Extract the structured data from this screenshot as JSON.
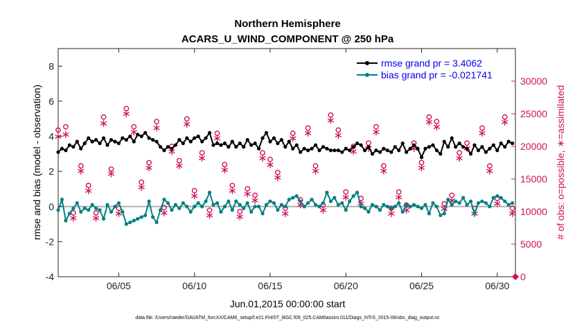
{
  "chart_data": {
    "type": "line",
    "title": "Northern Hemisphere",
    "subtitle": "ACARS_U_WIND_COMPONENT @ 250 hPa",
    "xlabel": "Jun.01,2015 00:00:00 start",
    "ylabel": "rmse and bias (model - observation)",
    "ylabel_right": "# of obs: o=possible, ∗=assimilated",
    "footnote": "data file: /Users/raeder/DAI/ATM_forcXX/CAM6_setup/f.e21.FHIST_BGC.f09_025.CAM6assim.011/Diags_NTrS_2015-06/obs_diag_output.nc",
    "xlim": [
      1,
      31.2
    ],
    "ylim": [
      -4,
      9
    ],
    "ylim_right": [
      0,
      35000
    ],
    "xticks": [
      5,
      10,
      15,
      20,
      25,
      30
    ],
    "xtick_labels": [
      "06/05",
      "06/10",
      "06/15",
      "06/20",
      "06/25",
      "06/30"
    ],
    "yticks": [
      -4,
      -2,
      0,
      2,
      4,
      6,
      8
    ],
    "ytick_labels": [
      "-4",
      "-2",
      "0",
      "2",
      "4",
      "6",
      "8"
    ],
    "yticks_right": [
      0,
      5000,
      10000,
      15000,
      20000,
      25000,
      30000
    ],
    "ytick_right_labels": [
      "0",
      "5000",
      "10000",
      "15000",
      "20000",
      "25000",
      "30000"
    ],
    "grid": false,
    "legend_position": "top-right",
    "legend": [
      {
        "label": "rmse grand pr = 3.4062",
        "color": "#000000"
      },
      {
        "label": "bias grand pr = -0.021741",
        "color": "#008080"
      }
    ],
    "colors": {
      "rmse": "#000000",
      "bias": "#008080",
      "obs": "#d0105a",
      "zero_line": "#b0b0b0"
    },
    "obs_axis_marker": {
      "x": 31.2,
      "y": 0
    },
    "series": [
      {
        "name": "rmse grand pr = 3.4062",
        "axis": "left",
        "x": [
          1.0,
          1.25,
          1.5,
          1.75,
          2.0,
          2.25,
          2.5,
          2.75,
          3.0,
          3.25,
          3.5,
          3.75,
          4.0,
          4.25,
          4.5,
          4.75,
          5.0,
          5.25,
          5.5,
          5.75,
          6.0,
          6.25,
          6.5,
          6.75,
          7.0,
          7.25,
          7.5,
          7.75,
          8.0,
          8.25,
          8.5,
          8.75,
          9.0,
          9.25,
          9.5,
          9.75,
          10.0,
          10.25,
          10.5,
          10.75,
          11.0,
          11.25,
          11.5,
          11.75,
          12.0,
          12.25,
          12.5,
          12.75,
          13.0,
          13.25,
          13.5,
          13.75,
          14.0,
          14.25,
          14.5,
          14.75,
          15.0,
          15.25,
          15.5,
          15.75,
          16.0,
          16.25,
          16.5,
          16.75,
          17.0,
          17.25,
          17.5,
          17.75,
          18.0,
          18.25,
          18.5,
          18.75,
          19.0,
          19.25,
          19.5,
          19.75,
          20.0,
          20.25,
          20.5,
          20.75,
          21.0,
          21.25,
          21.5,
          21.75,
          22.0,
          22.25,
          22.5,
          22.75,
          23.0,
          23.25,
          23.5,
          23.75,
          24.0,
          24.25,
          24.5,
          24.75,
          25.0,
          25.25,
          25.5,
          25.75,
          26.0,
          26.25,
          26.5,
          26.75,
          27.0,
          27.25,
          27.5,
          27.75,
          28.0,
          28.25,
          28.5,
          28.75,
          29.0,
          29.25,
          29.5,
          29.75,
          30.0,
          30.25,
          30.5,
          30.75,
          31.0
        ],
        "values": [
          3.1,
          3.3,
          3.2,
          3.5,
          3.4,
          3.7,
          3.3,
          3.6,
          3.9,
          3.7,
          3.8,
          3.6,
          3.9,
          3.5,
          3.8,
          3.7,
          3.6,
          3.9,
          3.8,
          4.0,
          3.7,
          4.1,
          4.0,
          4.2,
          3.9,
          3.8,
          3.7,
          3.4,
          3.2,
          3.4,
          3.3,
          3.5,
          3.8,
          3.6,
          3.9,
          3.7,
          3.9,
          4.0,
          3.7,
          3.9,
          4.2,
          3.5,
          3.6,
          3.5,
          3.6,
          3.4,
          3.7,
          3.4,
          3.6,
          3.4,
          3.8,
          3.5,
          3.6,
          3.3,
          3.9,
          4.2,
          3.7,
          3.9,
          3.6,
          3.8,
          3.4,
          3.7,
          3.3,
          3.5,
          3.1,
          3.3,
          3.2,
          3.3,
          3.5,
          3.2,
          3.4,
          3.3,
          3.2,
          3.2,
          3.2,
          3.1,
          3.3,
          3.2,
          3.4,
          3.6,
          3.5,
          3.2,
          3.4,
          3.0,
          3.2,
          3.1,
          3.3,
          3.2,
          3.1,
          3.4,
          3.2,
          3.6,
          3.1,
          3.3,
          3.5,
          3.3,
          2.8,
          3.3,
          3.4,
          3.5,
          3.2,
          3.0,
          3.7,
          3.4,
          3.9,
          3.4,
          3.6,
          3.4,
          3.3,
          3.0,
          3.5,
          3.2,
          3.4,
          3.1,
          3.3,
          3.5,
          3.2,
          3.6,
          3.4,
          3.7,
          3.6
        ]
      },
      {
        "name": "bias grand pr = -0.021741",
        "axis": "left",
        "x": [
          1.0,
          1.25,
          1.5,
          1.75,
          2.0,
          2.25,
          2.5,
          2.75,
          3.0,
          3.25,
          3.5,
          3.75,
          4.0,
          4.25,
          4.5,
          4.75,
          5.0,
          5.25,
          5.5,
          5.75,
          6.0,
          6.25,
          6.5,
          6.75,
          7.0,
          7.25,
          7.5,
          7.75,
          8.0,
          8.25,
          8.5,
          8.75,
          9.0,
          9.25,
          9.5,
          9.75,
          10.0,
          10.25,
          10.5,
          10.75,
          11.0,
          11.25,
          11.5,
          11.75,
          12.0,
          12.25,
          12.5,
          12.75,
          13.0,
          13.25,
          13.5,
          13.75,
          14.0,
          14.25,
          14.5,
          14.75,
          15.0,
          15.25,
          15.5,
          15.75,
          16.0,
          16.25,
          16.5,
          16.75,
          17.0,
          17.25,
          17.5,
          17.75,
          18.0,
          18.25,
          18.5,
          18.75,
          19.0,
          19.25,
          19.5,
          19.75,
          20.0,
          20.25,
          20.5,
          20.75,
          21.0,
          21.25,
          21.5,
          21.75,
          22.0,
          22.25,
          22.5,
          22.75,
          23.0,
          23.25,
          23.5,
          23.75,
          24.0,
          24.25,
          24.5,
          24.75,
          25.0,
          25.25,
          25.5,
          25.75,
          26.0,
          26.25,
          26.5,
          26.75,
          27.0,
          27.25,
          27.5,
          27.75,
          28.0,
          28.25,
          28.5,
          28.75,
          29.0,
          29.25,
          29.5,
          29.75,
          30.0,
          30.25,
          30.5,
          30.75,
          31.0
        ],
        "values": [
          -0.2,
          0.4,
          -0.8,
          -0.4,
          -0.1,
          0.2,
          -0.3,
          -0.1,
          -0.2,
          0.1,
          -0.1,
          -0.2,
          -0.7,
          0.1,
          -0.3,
          0.0,
          0.2,
          -0.3,
          -1.0,
          -0.9,
          -0.8,
          -0.7,
          -0.6,
          -0.5,
          0.3,
          -0.6,
          -0.9,
          -0.2,
          0.4,
          0.2,
          -0.2,
          0.1,
          -0.1,
          0.2,
          0.0,
          -0.3,
          0.0,
          0.2,
          0.0,
          0.3,
          0.8,
          0.1,
          0.2,
          -0.3,
          0.0,
          0.3,
          -0.2,
          0.3,
          0.1,
          -0.1,
          0.2,
          -0.3,
          0.0,
          0.0,
          -0.4,
          0.1,
          0.3,
          0.2,
          -0.2,
          0.1,
          0.0,
          0.4,
          0.5,
          0.6,
          0.3,
          0.0,
          0.2,
          0.4,
          0.1,
          0.0,
          0.2,
          0.8,
          0.3,
          0.5,
          0.1,
          0.2,
          -0.2,
          0.3,
          0.6,
          0.8,
          0.0,
          -0.1,
          -0.3,
          0.1,
          0.0,
          -0.2,
          0.1,
          0.0,
          -0.1,
          0.0,
          0.2,
          -0.3,
          0.1,
          0.0,
          0.1,
          0.0,
          -0.1,
          0.1,
          -0.4,
          0.2,
          0.0,
          -0.5,
          -0.4,
          0.4,
          0.1,
          0.3,
          0.2,
          0.5,
          0.1,
          0.3,
          -0.4,
          0.2,
          0.3,
          0.2,
          0.0,
          0.5,
          0.6,
          0.5,
          0.3,
          0.1,
          0.2
        ]
      },
      {
        "name": "possible",
        "axis": "right",
        "marker": "o",
        "x": [
          1.0,
          1.5,
          2.0,
          2.5,
          3.0,
          3.5,
          4.0,
          4.5,
          5.0,
          5.5,
          6.0,
          6.5,
          7.0,
          7.5,
          8.0,
          8.5,
          9.0,
          9.5,
          10.0,
          10.5,
          11.0,
          11.5,
          12.0,
          12.5,
          13.0,
          13.5,
          14.0,
          14.5,
          15.0,
          15.5,
          16.0,
          16.5,
          17.0,
          17.5,
          18.0,
          18.5,
          19.0,
          19.5,
          20.0,
          20.5,
          21.0,
          21.5,
          22.0,
          22.5,
          23.0,
          23.5,
          24.0,
          24.5,
          25.0,
          25.5,
          26.0,
          26.5,
          27.0,
          27.5,
          28.0,
          28.5,
          29.0,
          29.5,
          30.0,
          30.5,
          31.0
        ],
        "values": [
          22500,
          23000,
          9800,
          17000,
          14000,
          9800,
          24500,
          16500,
          10500,
          25800,
          23000,
          14500,
          17500,
          23800,
          10600,
          20000,
          17800,
          24200,
          13200,
          19000,
          10200,
          22000,
          17200,
          14000,
          10000,
          13500,
          12500,
          19000,
          18000,
          16000,
          10500,
          22000,
          11800,
          22800,
          17000,
          11000,
          24800,
          22500,
          13000,
          20000,
          12000,
          20500,
          23000,
          17000,
          10500,
          13000,
          11000,
          20500,
          17500,
          24500,
          23800,
          11200,
          12500,
          19000,
          20500,
          10500,
          22800,
          17000,
          12000,
          24500,
          10500
        ]
      },
      {
        "name": "assimilated",
        "axis": "right",
        "marker": "*",
        "x": [
          1.0,
          1.5,
          2.0,
          2.5,
          3.0,
          3.5,
          4.0,
          4.5,
          5.0,
          5.5,
          6.0,
          6.5,
          7.0,
          7.5,
          8.0,
          8.5,
          9.0,
          9.5,
          10.0,
          10.5,
          11.0,
          11.5,
          12.0,
          12.5,
          13.0,
          13.5,
          14.0,
          14.5,
          15.0,
          15.5,
          16.0,
          16.5,
          17.0,
          17.5,
          18.0,
          18.5,
          19.0,
          19.5,
          20.0,
          20.5,
          21.0,
          21.5,
          22.0,
          22.5,
          23.0,
          23.5,
          24.0,
          24.5,
          25.0,
          25.5,
          26.0,
          26.5,
          27.0,
          27.5,
          28.0,
          28.5,
          29.0,
          29.5,
          30.0,
          30.5,
          31.0
        ],
        "values": [
          21500,
          21800,
          9000,
          16200,
          13200,
          9000,
          23500,
          15800,
          9700,
          25000,
          22200,
          13700,
          16700,
          22800,
          9800,
          19200,
          17000,
          23400,
          12400,
          18200,
          9400,
          21200,
          16400,
          13200,
          9200,
          12700,
          11700,
          18200,
          17200,
          15200,
          9700,
          21200,
          11000,
          22000,
          16200,
          10200,
          24000,
          21700,
          12200,
          19200,
          11200,
          19700,
          22200,
          16200,
          9700,
          12200,
          10200,
          19700,
          16700,
          23700,
          23000,
          10400,
          11700,
          18200,
          19700,
          9700,
          22000,
          16200,
          11200,
          23700,
          9700
        ]
      }
    ]
  }
}
